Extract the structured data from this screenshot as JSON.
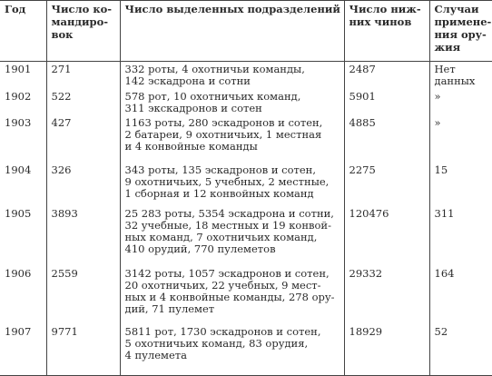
{
  "header": {
    "year": [
      "Год"
    ],
    "commands": [
      "Число ко-",
      "мандиро-",
      "вок"
    ],
    "units": [
      "Число выделенных подразделений"
    ],
    "ranks": [
      "Число ниж-",
      "них чинов"
    ],
    "uses": [
      "Случаи",
      "примене-",
      "ния ору-",
      "жия"
    ]
  },
  "rows": [
    {
      "year": "1901",
      "commands": "271",
      "units": [
        "332 роты, 4 охотничьи команды,",
        "142 эскадрона и сотни"
      ],
      "ranks": "2487",
      "uses": [
        "Нет",
        "данных"
      ]
    },
    {
      "year": "1902",
      "commands": "522",
      "units": [
        "578 рот, 10 охотничьих команд,",
        "311 экскадронов и сотен"
      ],
      "ranks": "5901",
      "uses": [
        "»"
      ]
    },
    {
      "year": "1903",
      "commands": "427",
      "units": [
        "1163 роты, 280 эскадронов и сотен,",
        "2 батареи, 9 охотничьих, 1 местная",
        "и 4 конвойные команды"
      ],
      "ranks": "4885",
      "uses": [
        "»"
      ]
    },
    {
      "year": "1904",
      "commands": "326",
      "units": [
        "343 роты, 135 эскадронов и сотен,",
        "9 охотничьих, 5 учебных, 2 местные,",
        "1 сборная и 12 конвойных команд"
      ],
      "ranks": "2275",
      "uses": [
        "15"
      ]
    },
    {
      "year": "1905",
      "commands": "3893",
      "units": [
        "25 283 роты, 5354 эскадрона и сотни,",
        "32 учебные, 18 местных и 19 конвой-",
        "ных команд, 7 охотничьих команд,",
        "410 орудий, 770 пулеметов"
      ],
      "ranks": "120476",
      "uses": [
        "311"
      ]
    },
    {
      "year": "1906",
      "commands": "2559",
      "units": [
        "3142 роты, 1057 эскадронов и сотен,",
        "20 охотничьих, 22 учебных, 9 мест-",
        "ных и 4 конвойные команды, 278 ору-",
        "дий, 71 пулемет"
      ],
      "ranks": "29332",
      "uses": [
        "164"
      ]
    },
    {
      "year": "1907",
      "commands": "9771",
      "units": [
        "5811 рот, 1730 эскадронов и сотен,",
        "5 охотничьих команд, 83 орудия,",
        "4 пулемета"
      ],
      "ranks": "18929",
      "uses": [
        "52"
      ]
    }
  ]
}
